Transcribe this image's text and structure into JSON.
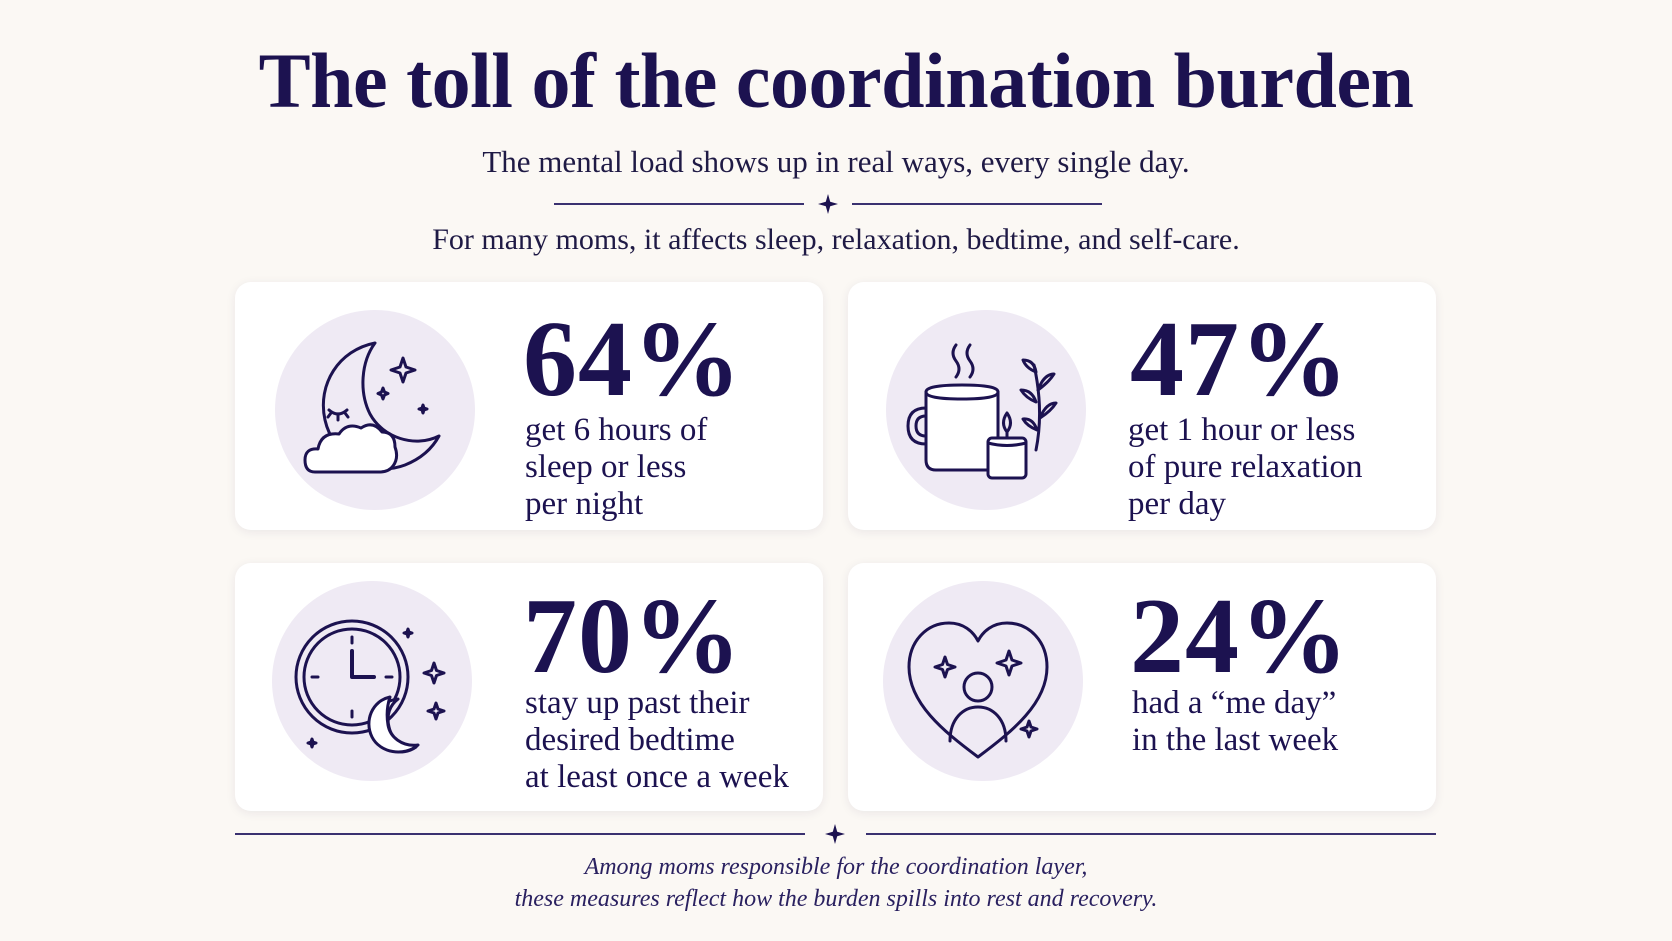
{
  "header": {
    "title": "The toll of the coordination burden",
    "subtitle": "The mental load shows up in real ways, every single day.",
    "intro": "For many moms, it affects sleep, relaxation, bedtime, and self-care."
  },
  "stats": [
    {
      "value": "64%",
      "description": "get 6 hours of\nsleep or less\nper night",
      "icon": "moon-cloud-icon"
    },
    {
      "value": "47%",
      "description": "get 1 hour or less\nof pure relaxation\nper day",
      "icon": "mug-candle-icon"
    },
    {
      "value": "70%",
      "description": "stay up past their\ndesired bedtime\nat least once a week",
      "icon": "clock-moon-icon"
    },
    {
      "value": "24%",
      "description": "had a “me day”\nin the last week",
      "icon": "heart-person-icon"
    }
  ],
  "footer": {
    "line1": "Among moms responsible for the coordination layer,",
    "line2": "these measures reflect how the burden spills into rest and recovery."
  },
  "colors": {
    "background": "#fbf8f4",
    "text": "#1c1250",
    "card": "#ffffff",
    "icon_circle": "#efeaf4",
    "divider": "#3a3170"
  }
}
